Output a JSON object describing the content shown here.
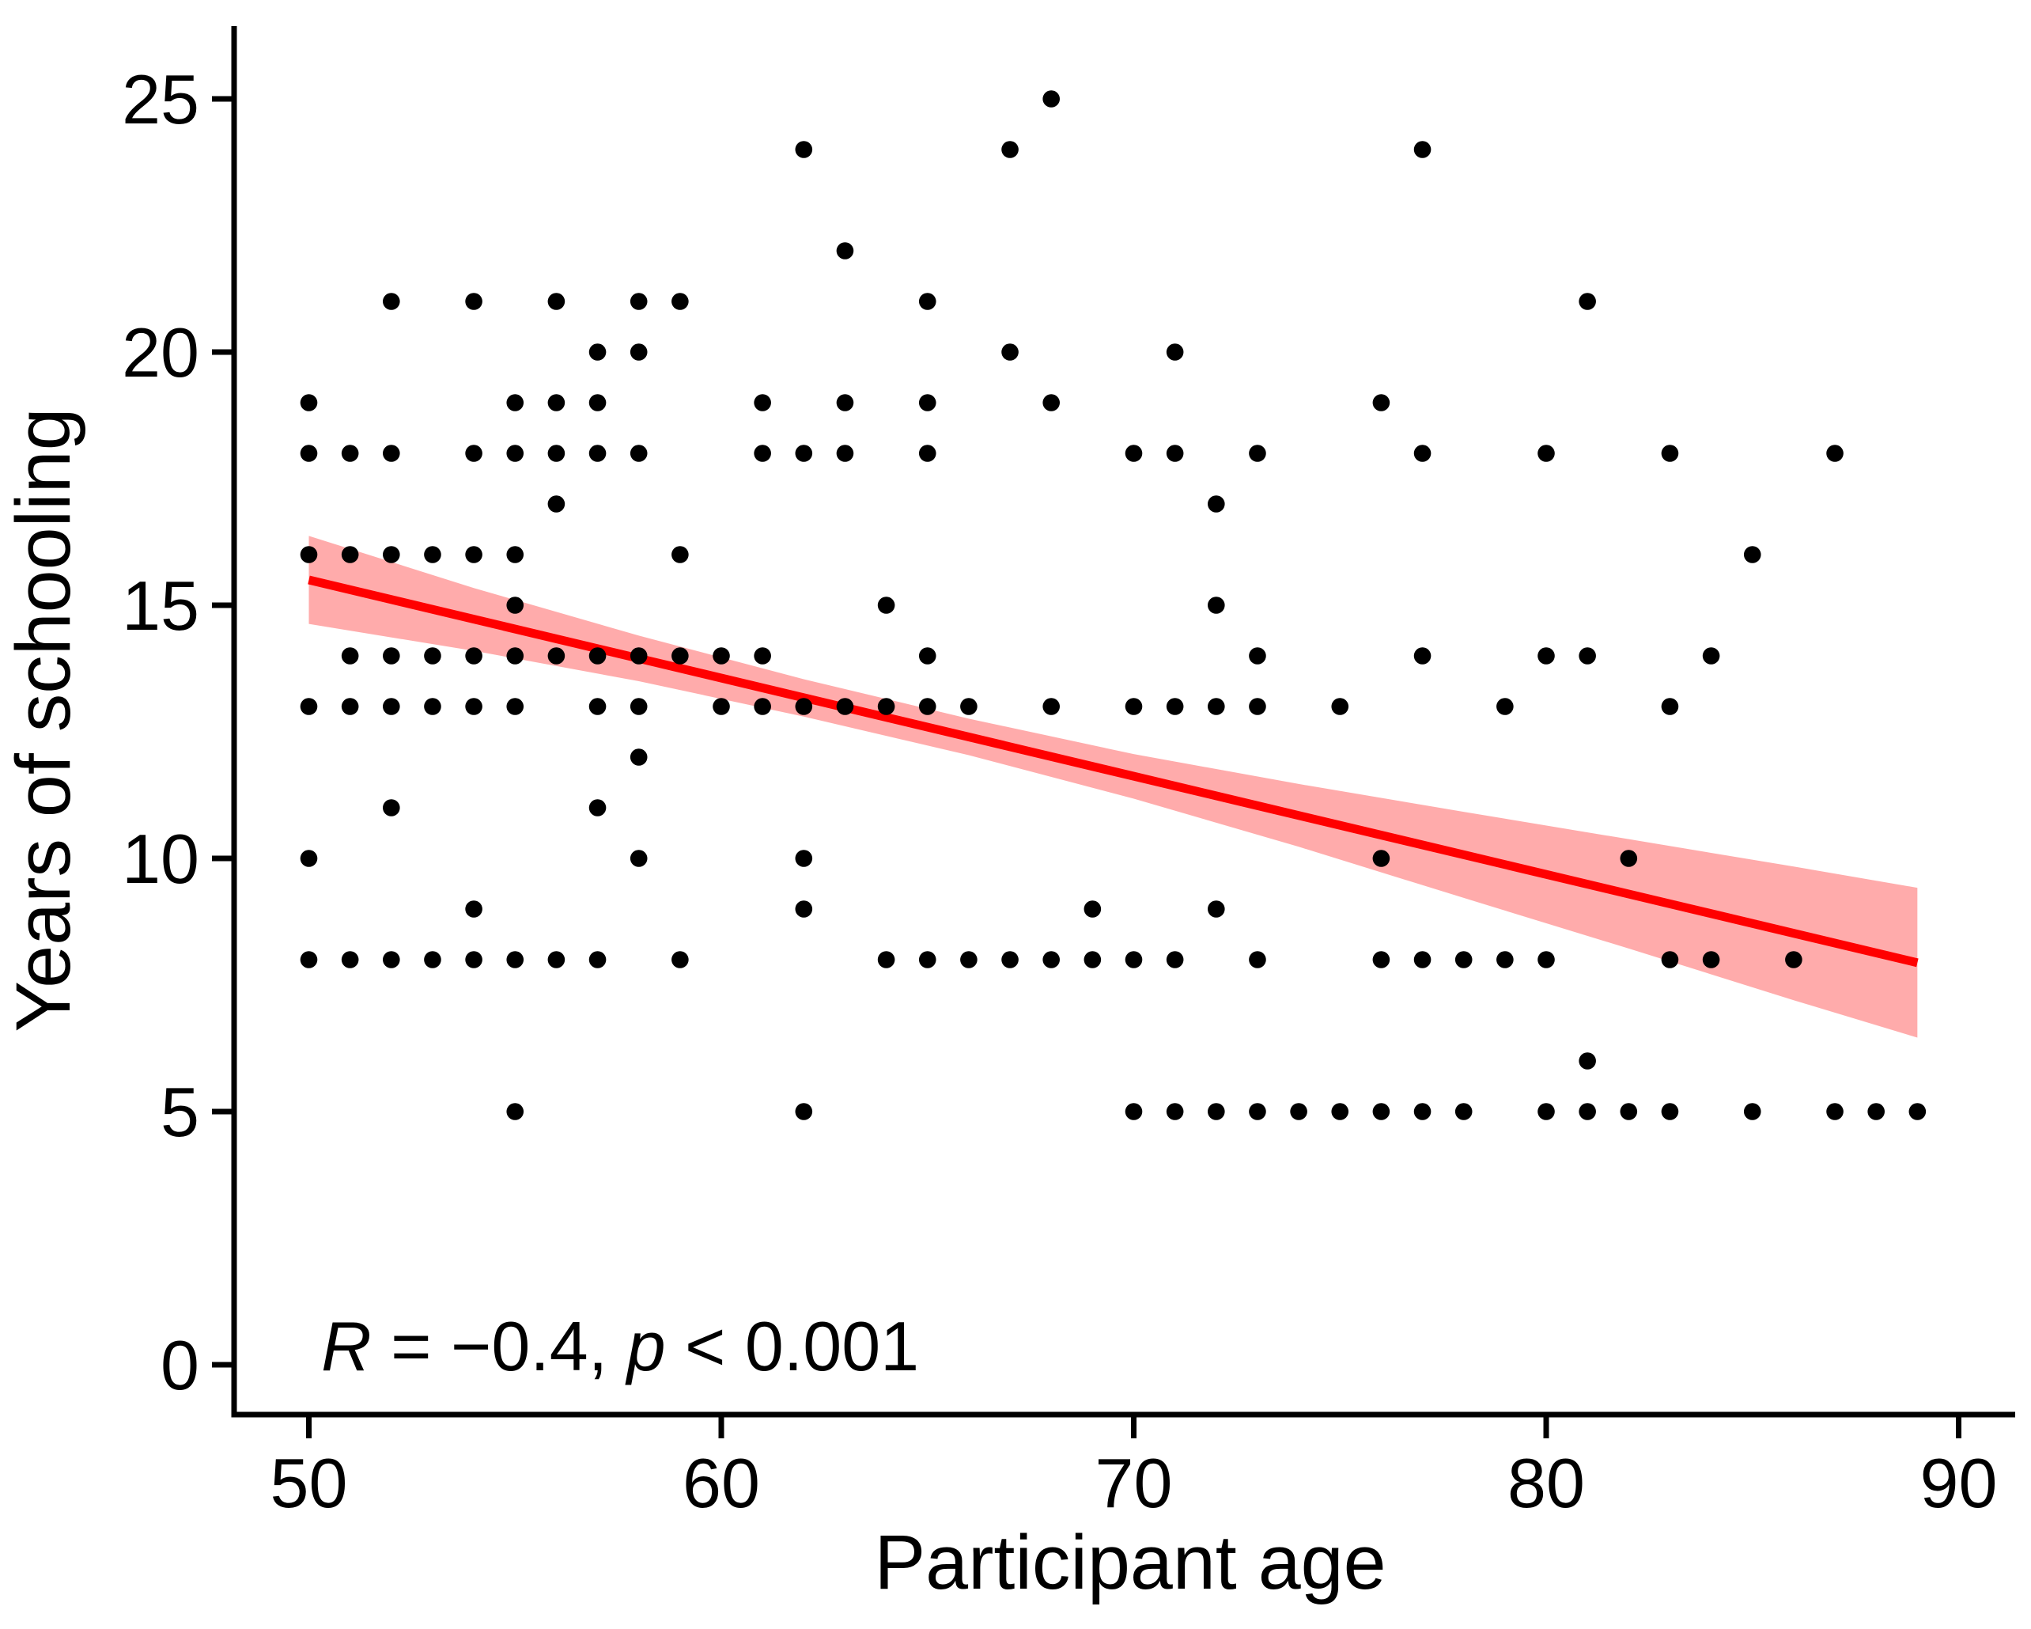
{
  "chart_data": {
    "type": "scatter",
    "title": "",
    "xlabel": "Participant age",
    "ylabel": "Years of schooling",
    "xlim": [
      48.2,
      91.3
    ],
    "ylim": [
      -1,
      26.6
    ],
    "x_ticks": [
      50,
      60,
      70,
      80,
      90
    ],
    "y_ticks": [
      0,
      5,
      10,
      15,
      20,
      25
    ],
    "grid": "off",
    "legend": "none",
    "points": [
      [
        68,
        25
      ],
      [
        62,
        24
      ],
      [
        67,
        24
      ],
      [
        77,
        24
      ],
      [
        63,
        22
      ],
      [
        52,
        21
      ],
      [
        54,
        21
      ],
      [
        56,
        21
      ],
      [
        58,
        21
      ],
      [
        59,
        21
      ],
      [
        65,
        21
      ],
      [
        81,
        21
      ],
      [
        57,
        20
      ],
      [
        58,
        20
      ],
      [
        67,
        20
      ],
      [
        71,
        20
      ],
      [
        50,
        19
      ],
      [
        55,
        19
      ],
      [
        56,
        19
      ],
      [
        57,
        19
      ],
      [
        61,
        19
      ],
      [
        63,
        19
      ],
      [
        65,
        19
      ],
      [
        68,
        19
      ],
      [
        76,
        19
      ],
      [
        50,
        18
      ],
      [
        51,
        18
      ],
      [
        52,
        18
      ],
      [
        54,
        18
      ],
      [
        55,
        18
      ],
      [
        56,
        18
      ],
      [
        57,
        18
      ],
      [
        58,
        18
      ],
      [
        61,
        18
      ],
      [
        62,
        18
      ],
      [
        63,
        18
      ],
      [
        65,
        18
      ],
      [
        70,
        18
      ],
      [
        71,
        18
      ],
      [
        73,
        18
      ],
      [
        77,
        18
      ],
      [
        80,
        18
      ],
      [
        83,
        18
      ],
      [
        87,
        18
      ],
      [
        56,
        17
      ],
      [
        72,
        17
      ],
      [
        50,
        16
      ],
      [
        51,
        16
      ],
      [
        52,
        16
      ],
      [
        53,
        16
      ],
      [
        54,
        16
      ],
      [
        55,
        16
      ],
      [
        59,
        16
      ],
      [
        85,
        16
      ],
      [
        55,
        15
      ],
      [
        64,
        15
      ],
      [
        72,
        15
      ],
      [
        51,
        14
      ],
      [
        52,
        14
      ],
      [
        53,
        14
      ],
      [
        54,
        14
      ],
      [
        55,
        14
      ],
      [
        56,
        14
      ],
      [
        57,
        14
      ],
      [
        58,
        14
      ],
      [
        59,
        14
      ],
      [
        60,
        14
      ],
      [
        61,
        14
      ],
      [
        65,
        14
      ],
      [
        73,
        14
      ],
      [
        77,
        14
      ],
      [
        80,
        14
      ],
      [
        81,
        14
      ],
      [
        84,
        14
      ],
      [
        50,
        13
      ],
      [
        51,
        13
      ],
      [
        52,
        13
      ],
      [
        53,
        13
      ],
      [
        54,
        13
      ],
      [
        55,
        13
      ],
      [
        57,
        13
      ],
      [
        58,
        13
      ],
      [
        60,
        13
      ],
      [
        61,
        13
      ],
      [
        62,
        13
      ],
      [
        63,
        13
      ],
      [
        64,
        13
      ],
      [
        65,
        13
      ],
      [
        66,
        13
      ],
      [
        68,
        13
      ],
      [
        70,
        13
      ],
      [
        71,
        13
      ],
      [
        72,
        13
      ],
      [
        73,
        13
      ],
      [
        75,
        13
      ],
      [
        79,
        13
      ],
      [
        83,
        13
      ],
      [
        58,
        12
      ],
      [
        52,
        11
      ],
      [
        57,
        11
      ],
      [
        50,
        10
      ],
      [
        58,
        10
      ],
      [
        62,
        10
      ],
      [
        76,
        10
      ],
      [
        82,
        10
      ],
      [
        54,
        9
      ],
      [
        62,
        9
      ],
      [
        69,
        9
      ],
      [
        72,
        9
      ],
      [
        50,
        8
      ],
      [
        51,
        8
      ],
      [
        52,
        8
      ],
      [
        53,
        8
      ],
      [
        54,
        8
      ],
      [
        55,
        8
      ],
      [
        56,
        8
      ],
      [
        57,
        8
      ],
      [
        59,
        8
      ],
      [
        64,
        8
      ],
      [
        65,
        8
      ],
      [
        66,
        8
      ],
      [
        67,
        8
      ],
      [
        68,
        8
      ],
      [
        69,
        8
      ],
      [
        70,
        8
      ],
      [
        71,
        8
      ],
      [
        73,
        8
      ],
      [
        76,
        8
      ],
      [
        77,
        8
      ],
      [
        78,
        8
      ],
      [
        79,
        8
      ],
      [
        80,
        8
      ],
      [
        83,
        8
      ],
      [
        84,
        8
      ],
      [
        86,
        8
      ],
      [
        81,
        6
      ],
      [
        55,
        5
      ],
      [
        62,
        5
      ],
      [
        70,
        5
      ],
      [
        71,
        5
      ],
      [
        72,
        5
      ],
      [
        73,
        5
      ],
      [
        74,
        5
      ],
      [
        75,
        5
      ],
      [
        76,
        5
      ],
      [
        77,
        5
      ],
      [
        78,
        5
      ],
      [
        80,
        5
      ],
      [
        81,
        5
      ],
      [
        82,
        5
      ],
      [
        83,
        5
      ],
      [
        85,
        5
      ],
      [
        87,
        5
      ],
      [
        88,
        5
      ],
      [
        89,
        5
      ]
    ],
    "regression_line": {
      "x": [
        50,
        89
      ],
      "y": [
        15.5,
        7.94
      ]
    },
    "ci_band": {
      "ages": [
        50,
        54,
        58,
        62,
        66,
        70,
        74,
        78,
        82,
        86,
        89
      ],
      "upper": [
        16.37,
        15.34,
        14.4,
        13.54,
        12.76,
        12.06,
        11.47,
        10.92,
        10.38,
        9.84,
        9.42
      ],
      "lower": [
        14.63,
        14.1,
        13.5,
        12.8,
        12.04,
        11.18,
        10.23,
        9.22,
        8.22,
        7.2,
        6.46
      ]
    },
    "annotation": {
      "text": "R = −0.4, p < 0.001",
      "parts": [
        {
          "t": "R",
          "italic": true
        },
        {
          "t": " = −0.4, ",
          "italic": false
        },
        {
          "t": "p",
          "italic": true
        },
        {
          "t": " < 0.001",
          "italic": false
        }
      ],
      "x_age": 50.3,
      "y_years": 0.1
    },
    "colors": {
      "point": "#000000",
      "line": "#FF0000",
      "band": "#FF0000",
      "band_opacity": 0.33,
      "axis": "#000000",
      "background": "#FFFFFF"
    }
  }
}
